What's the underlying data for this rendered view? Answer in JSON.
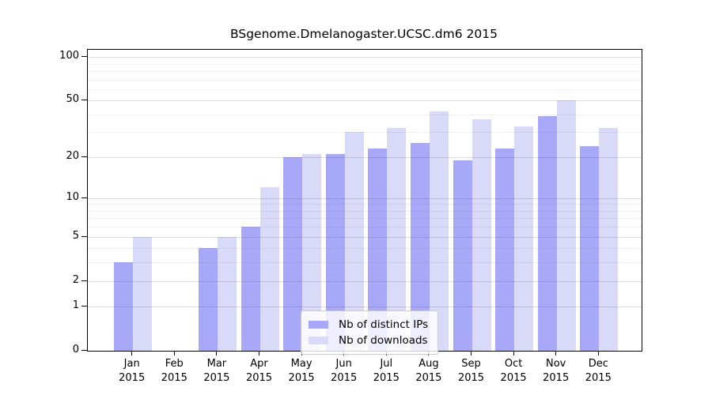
{
  "chart_data": {
    "type": "bar",
    "title": "BSgenome.Dmelanogaster.UCSC.dm6 2015",
    "year": "2015",
    "x_categories": [
      {
        "month": "Jan",
        "year": "2015"
      },
      {
        "month": "Feb",
        "year": "2015"
      },
      {
        "month": "Mar",
        "year": "2015"
      },
      {
        "month": "Apr",
        "year": "2015"
      },
      {
        "month": "May",
        "year": "2015"
      },
      {
        "month": "Jun",
        "year": "2015"
      },
      {
        "month": "Jul",
        "year": "2015"
      },
      {
        "month": "Aug",
        "year": "2015"
      },
      {
        "month": "Sep",
        "year": "2015"
      },
      {
        "month": "Oct",
        "year": "2015"
      },
      {
        "month": "Nov",
        "year": "2015"
      },
      {
        "month": "Dec",
        "year": "2015"
      }
    ],
    "series": [
      {
        "name": "Nb of distinct IPs",
        "color": "#a8a8f8",
        "values": [
          3,
          0,
          4,
          6,
          20,
          21,
          23,
          25,
          19,
          23,
          39,
          24
        ]
      },
      {
        "name": "Nb of downloads",
        "color": "#d9d9f8",
        "values": [
          5,
          0,
          5,
          12,
          21,
          30,
          32,
          42,
          37,
          33,
          50,
          32
        ]
      }
    ],
    "y_axis": {
      "scale": "log10(value+1)",
      "major_ticks": [
        {
          "v": 100,
          "label": "100"
        },
        {
          "v": 50,
          "label": "50"
        },
        {
          "v": 20,
          "label": "20"
        },
        {
          "v": 10,
          "label": "10"
        },
        {
          "v": 5,
          "label": "5"
        },
        {
          "v": 2,
          "label": "2"
        },
        {
          "v": 1,
          "label": "1"
        },
        {
          "v": 0,
          "label": "0"
        }
      ],
      "minor_gridline_values": [
        3,
        4,
        6,
        7,
        8,
        9,
        30,
        40,
        60,
        70,
        80,
        90
      ],
      "axis_top_value": 112
    },
    "legend": {
      "position": "inside-bottom-center"
    },
    "grid": true,
    "colors": {
      "distinct_ips": "#a8a8f8",
      "downloads": "#d9d9f8",
      "legend_border": "#cccccc",
      "axis": "#000000"
    }
  }
}
